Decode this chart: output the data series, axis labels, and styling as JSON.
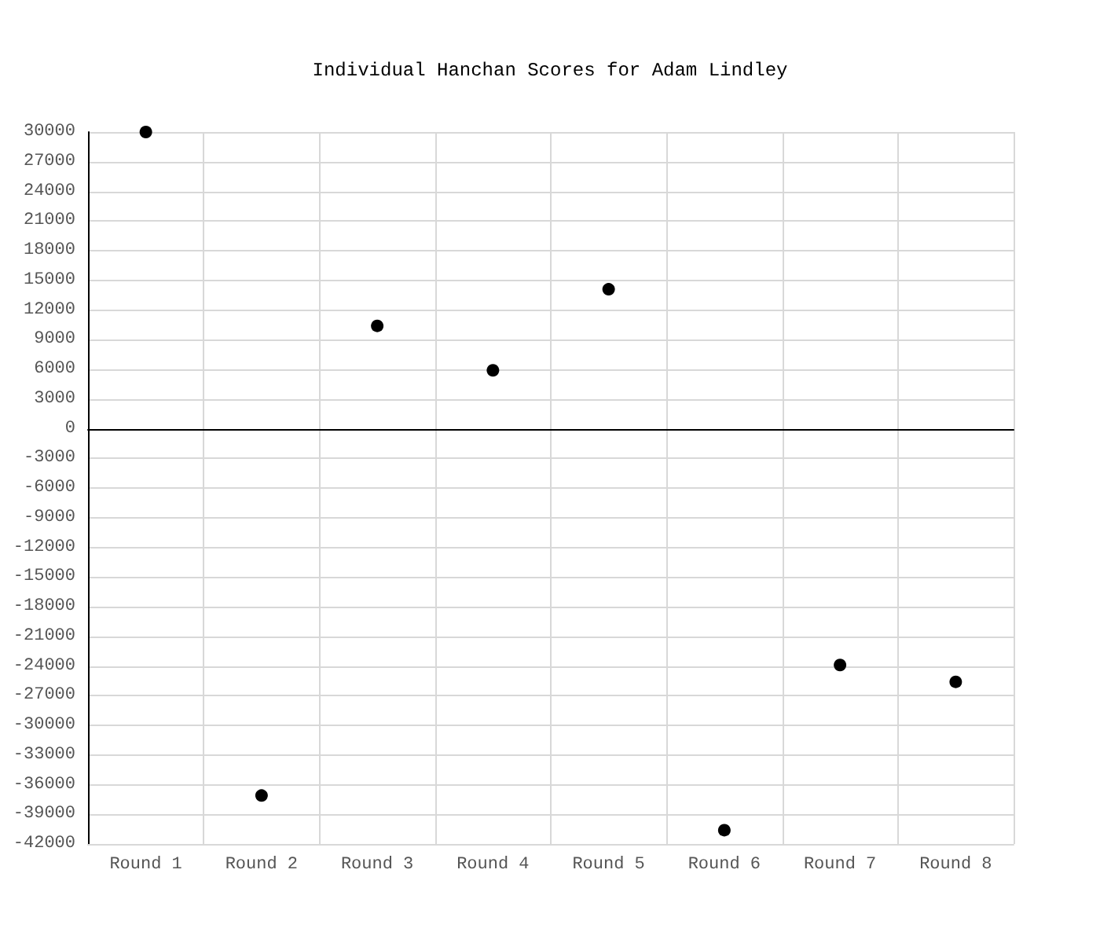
{
  "chart_data": {
    "type": "scatter",
    "title": "Individual Hanchan Scores for Adam Lindley",
    "categories": [
      "Round 1",
      "Round 2",
      "Round 3",
      "Round 4",
      "Round 5",
      "Round 6",
      "Round 7",
      "Round 8"
    ],
    "series": [
      {
        "color": "#000000",
        "values": [
          30000,
          -37100,
          10400,
          5900,
          14100,
          -40600,
          -23900,
          -25600
        ]
      }
    ],
    "ylim": [
      -42000,
      30000
    ],
    "yticks": [
      -42000,
      -39000,
      -36000,
      -33000,
      -30000,
      -27000,
      -24000,
      -21000,
      -18000,
      -15000,
      -12000,
      -9000,
      -6000,
      -3000,
      0,
      3000,
      6000,
      9000,
      12000,
      15000,
      18000,
      21000,
      24000,
      27000,
      30000
    ],
    "grid": true,
    "marker": "circle"
  }
}
